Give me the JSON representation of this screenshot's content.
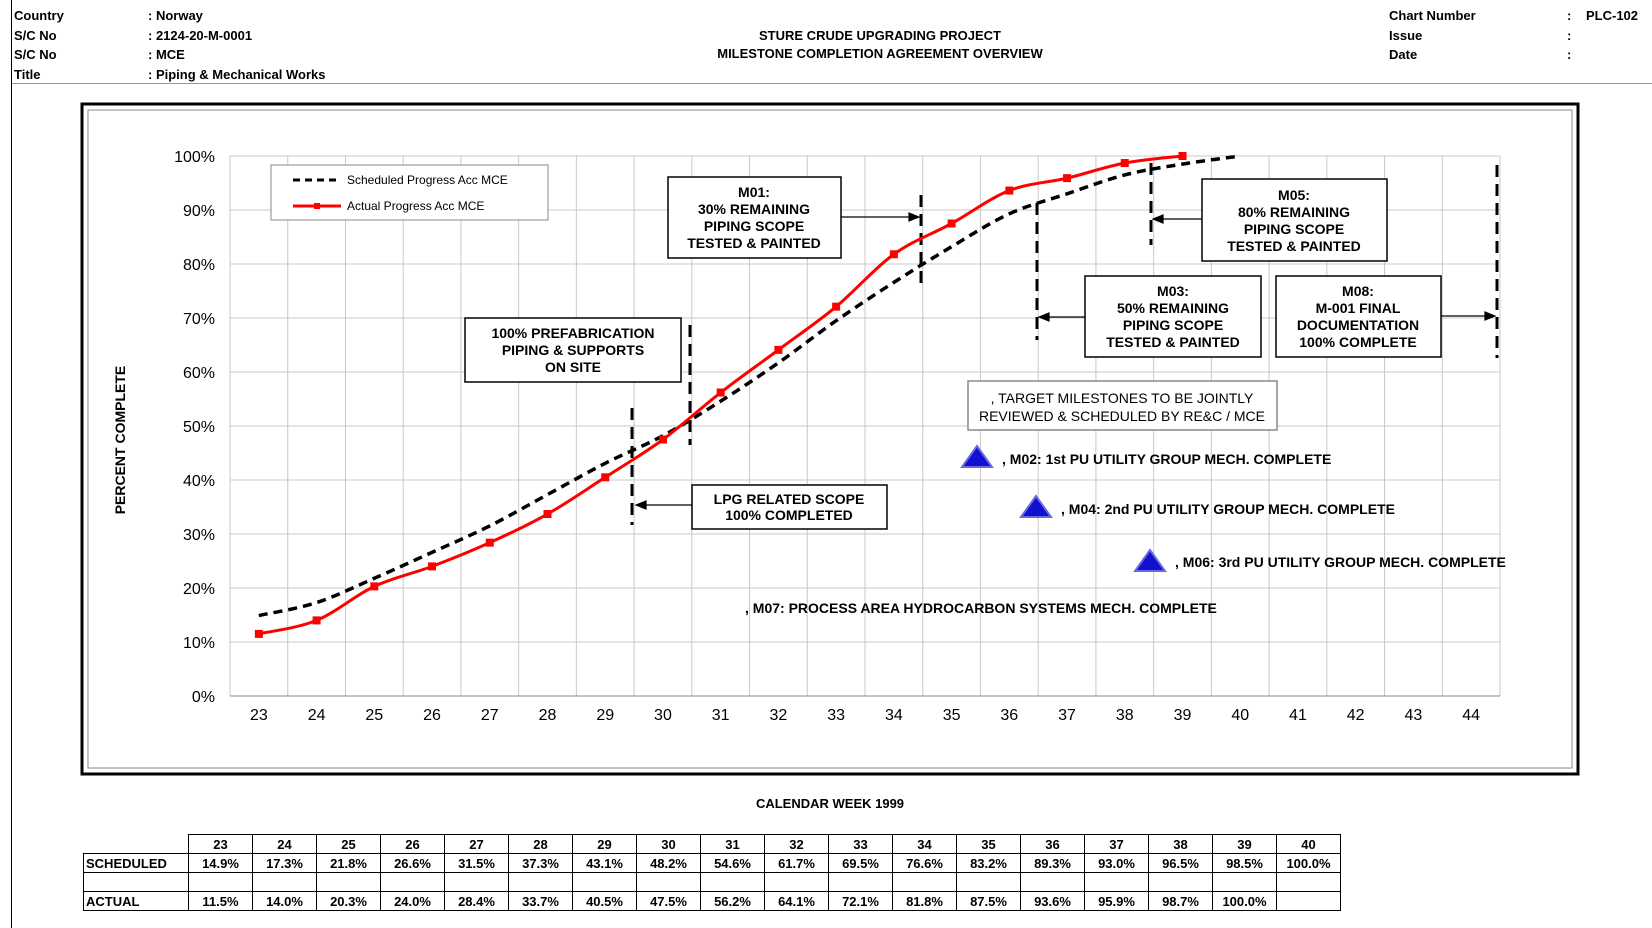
{
  "header": {
    "left": [
      {
        "label": "Country",
        "value": ": Norway"
      },
      {
        "label": "S/C No",
        "value": ": 2124-20-M-0001"
      },
      {
        "label": "S/C No",
        "value": ": MCE"
      },
      {
        "label": "Title",
        "value": ": Piping & Mechanical Works"
      }
    ],
    "center": [
      "STURE CRUDE UPGRADING PROJECT",
      "MILESTONE COMPLETION AGREEMENT OVERVIEW"
    ],
    "right": [
      {
        "label": "Chart Number",
        "colon": ":",
        "value": "PLC-102"
      },
      {
        "label": "Issue",
        "colon": ":",
        "value": ""
      },
      {
        "label": "Date",
        "colon": ":",
        "value": ""
      }
    ]
  },
  "chart_data": {
    "type": "line",
    "xlabel": "CALENDAR WEEK 1999",
    "ylabel": "PERCENT COMPLETE",
    "x": [
      23,
      24,
      25,
      26,
      27,
      28,
      29,
      30,
      31,
      32,
      33,
      34,
      35,
      36,
      37,
      38,
      39,
      40,
      41,
      42,
      43,
      44
    ],
    "yticks": [
      "0%",
      "10%",
      "20%",
      "30%",
      "40%",
      "50%",
      "60%",
      "70%",
      "80%",
      "90%",
      "100%"
    ],
    "ylim": [
      0,
      100
    ],
    "grid": true,
    "legend_position": "top-left",
    "series": [
      {
        "name": "Scheduled Progress Acc MCE",
        "color": "#000000",
        "style": "dashed",
        "x": [
          23,
          24,
          25,
          26,
          27,
          28,
          29,
          30,
          31,
          32,
          33,
          34,
          35,
          36,
          37,
          38,
          39,
          40
        ],
        "values": [
          14.9,
          17.3,
          21.8,
          26.6,
          31.5,
          37.3,
          43.1,
          48.2,
          54.6,
          61.7,
          69.5,
          76.6,
          83.2,
          89.3,
          93.0,
          96.5,
          98.5,
          100.0
        ]
      },
      {
        "name": "Actual Progress Acc MCE",
        "color": "#ff0000",
        "style": "solid-square-markers",
        "x": [
          23,
          24,
          25,
          26,
          27,
          28,
          29,
          30,
          31,
          32,
          33,
          34,
          35,
          36,
          37,
          38,
          39
        ],
        "values": [
          11.5,
          14.0,
          20.3,
          24.0,
          28.4,
          33.7,
          40.5,
          47.5,
          56.2,
          64.1,
          72.1,
          81.8,
          87.5,
          93.6,
          95.9,
          98.7,
          100.0
        ]
      }
    ],
    "annotations": [
      {
        "lines": [
          "100% PREFABRICATION",
          "PIPING & SUPPORTS",
          "ON SITE"
        ]
      },
      {
        "lines": [
          "LPG RELATED SCOPE",
          "100% COMPLETED"
        ]
      },
      {
        "lines": [
          "M01:",
          "30% REMAINING",
          "PIPING SCOPE",
          "TESTED & PAINTED"
        ]
      },
      {
        "lines": [
          "M03:",
          "50% REMAINING",
          "PIPING SCOPE",
          "TESTED & PAINTED"
        ]
      },
      {
        "lines": [
          "M05:",
          "80% REMAINING",
          "PIPING SCOPE",
          "TESTED & PAINTED"
        ]
      },
      {
        "lines": [
          "M08:",
          "M-001 FINAL",
          "DOCUMENTATION",
          "100% COMPLETE"
        ]
      },
      {
        "lines": [
          ", TARGET MILESTONES TO BE JOINTLY",
          "REVIEWED & SCHEDULED BY RE&C / MCE"
        ]
      }
    ],
    "milestone_labels": [
      ", M02: 1st PU UTILITY GROUP MECH. COMPLETE",
      ", M04: 2nd PU UTILITY GROUP MECH. COMPLETE",
      ", M06: 3rd PU UTILITY GROUP MECH. COMPLETE",
      ", M07: PROCESS AREA HYDROCARBON SYSTEMS MECH. COMPLETE"
    ]
  },
  "table": {
    "weeks": [
      "23",
      "24",
      "25",
      "26",
      "27",
      "28",
      "29",
      "30",
      "31",
      "32",
      "33",
      "34",
      "35",
      "36",
      "37",
      "38",
      "39",
      "40"
    ],
    "scheduled_label": "SCHEDULED",
    "scheduled": [
      "14.9%",
      "17.3%",
      "21.8%",
      "26.6%",
      "31.5%",
      "37.3%",
      "43.1%",
      "48.2%",
      "54.6%",
      "61.7%",
      "69.5%",
      "76.6%",
      "83.2%",
      "89.3%",
      "93.0%",
      "96.5%",
      "98.5%",
      "100.0%"
    ],
    "actual_label": "ACTUAL",
    "actual": [
      "11.5%",
      "14.0%",
      "20.3%",
      "24.0%",
      "28.4%",
      "33.7%",
      "40.5%",
      "47.5%",
      "56.2%",
      "64.1%",
      "72.1%",
      "81.8%",
      "87.5%",
      "93.6%",
      "95.9%",
      "98.7%",
      "100.0%",
      ""
    ]
  }
}
